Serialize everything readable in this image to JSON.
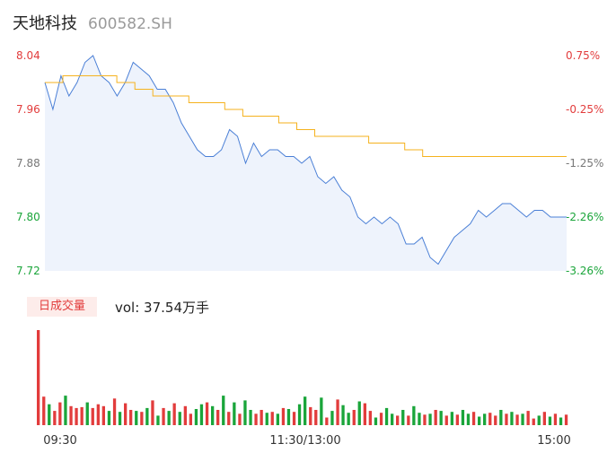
{
  "header": {
    "name": "天地科技",
    "code": "600582.SH"
  },
  "volume_panel": {
    "tag": "日成交量",
    "label": "vol: 37.54万手"
  },
  "colors": {
    "price_line": "#4a7fd6",
    "avg_line": "#f5b21e",
    "up": "#e23c3c",
    "down": "#1aa53a",
    "area": "#eef3fc"
  },
  "chart_data": [
    {
      "type": "line",
      "x_ticks": [
        "09:30",
        "11:30/13:00",
        "15:00"
      ],
      "ylim": [
        7.72,
        8.04
      ],
      "y_ticks_left": [
        "8.04",
        "7.96",
        "7.88",
        "7.80",
        "7.72"
      ],
      "y_ticks_right": [
        "0.75%",
        "-0.25%",
        "-1.25%",
        "-2.26%",
        "-3.26%"
      ],
      "series": [
        {
          "values": [
            8.0,
            7.96,
            8.01,
            7.98,
            8.0,
            8.03,
            8.04,
            8.01,
            8.0,
            7.98,
            8.0,
            8.03,
            8.02,
            8.01,
            7.99,
            7.99,
            7.97,
            7.94,
            7.92,
            7.9,
            7.89,
            7.89,
            7.9,
            7.93,
            7.92,
            7.88,
            7.91,
            7.89,
            7.9,
            7.9,
            7.89,
            7.89,
            7.88,
            7.89,
            7.86,
            7.85,
            7.86,
            7.84,
            7.83,
            7.8,
            7.79,
            7.8,
            7.79,
            7.8,
            7.79,
            7.76,
            7.76,
            7.77,
            7.74,
            7.73,
            7.75,
            7.77,
            7.78,
            7.79,
            7.81,
            7.8,
            7.81,
            7.82,
            7.82,
            7.81,
            7.8,
            7.81,
            7.81,
            7.8,
            7.8,
            7.8
          ]
        },
        {
          "values": [
            8.0,
            8.01,
            8.01,
            8.01,
            8.0,
            7.99,
            7.98,
            7.98,
            7.97,
            7.97,
            7.96,
            7.95,
            7.95,
            7.94,
            7.93,
            7.92,
            7.92,
            7.92,
            7.91,
            7.91,
            7.9,
            7.89,
            7.89,
            7.89,
            7.89,
            7.89,
            7.89,
            7.89,
            7.89,
            7.89
          ]
        }
      ]
    },
    {
      "type": "bar",
      "values": [
        100,
        30,
        22,
        15,
        24,
        31,
        20,
        18,
        19,
        24,
        18,
        22,
        20,
        15,
        28,
        14,
        23,
        16,
        15,
        14,
        18,
        26,
        10,
        18,
        15,
        23,
        14,
        20,
        12,
        17,
        22,
        24,
        20,
        16,
        31,
        14,
        24,
        12,
        26,
        16,
        12,
        16,
        13,
        14,
        12,
        18,
        17,
        14,
        22,
        30,
        19,
        16,
        29,
        8,
        15,
        27,
        21,
        13,
        16,
        25,
        23,
        15,
        8,
        13,
        18,
        12,
        10,
        16,
        10,
        20,
        13,
        11,
        12,
        16,
        15,
        10,
        14,
        11,
        16,
        12,
        14,
        9,
        12,
        13,
        10,
        16,
        12,
        14,
        11,
        12,
        15,
        7,
        10,
        14,
        9,
        12,
        8,
        11
      ],
      "directions": [
        "up",
        "up",
        "down",
        "up",
        "up",
        "down",
        "up",
        "up",
        "up",
        "down",
        "up",
        "up",
        "up",
        "down",
        "up",
        "down",
        "up",
        "up",
        "down",
        "up",
        "down",
        "up",
        "down",
        "up",
        "down",
        "up",
        "down",
        "up",
        "up",
        "down",
        "down",
        "up",
        "down",
        "up",
        "down",
        "up",
        "down",
        "up",
        "down",
        "down",
        "up",
        "up",
        "down",
        "up",
        "down",
        "up",
        "down",
        "up",
        "down",
        "down",
        "up",
        "up",
        "down",
        "up",
        "down",
        "up",
        "down",
        "down",
        "up",
        "down",
        "up",
        "up",
        "down",
        "up",
        "down",
        "down",
        "up",
        "down",
        "up",
        "down",
        "down",
        "up",
        "down",
        "up",
        "down",
        "up",
        "down",
        "up",
        "down",
        "down",
        "up",
        "down",
        "down",
        "up",
        "up",
        "down",
        "up",
        "down",
        "up",
        "down",
        "up",
        "up",
        "down",
        "up",
        "down",
        "up",
        "down",
        "up"
      ]
    }
  ]
}
